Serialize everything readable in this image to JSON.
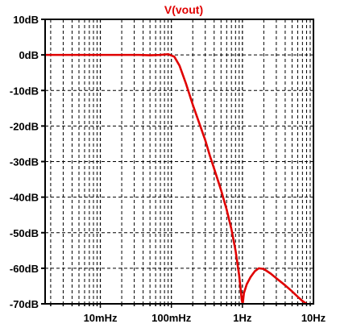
{
  "chart_data": {
    "type": "line",
    "title": "V(vout)",
    "x_scale": "log",
    "xlim": [
      0.00167,
      10
    ],
    "ylim": [
      -70,
      10
    ],
    "x_ticks": [
      {
        "value": 0.01,
        "label": "10mHz"
      },
      {
        "value": 0.1,
        "label": "100mHz"
      },
      {
        "value": 1,
        "label": "1Hz"
      },
      {
        "value": 10,
        "label": "10Hz"
      }
    ],
    "y_ticks": [
      {
        "value": 10,
        "label": "10dB"
      },
      {
        "value": 0,
        "label": "0dB"
      },
      {
        "value": -10,
        "label": "-10dB"
      },
      {
        "value": -20,
        "label": "-20dB"
      },
      {
        "value": -30,
        "label": "-30dB"
      },
      {
        "value": -40,
        "label": "-40dB"
      },
      {
        "value": -50,
        "label": "-50dB"
      },
      {
        "value": -60,
        "label": "-60dB"
      },
      {
        "value": -70,
        "label": "-70dB"
      }
    ],
    "grid": true,
    "series": [
      {
        "color": "#e00000",
        "x": [
          0.00167,
          0.005,
          0.01,
          0.02,
          0.035,
          0.05,
          0.07,
          0.09,
          0.11,
          0.13,
          0.16,
          0.2,
          0.25,
          0.3,
          0.35,
          0.4,
          0.5,
          0.6,
          0.7,
          0.8,
          0.9,
          0.98,
          1.01,
          1.05,
          1.15,
          1.3,
          1.5,
          1.7,
          2.0,
          2.5,
          3.0,
          4.0,
          5.0,
          6.0,
          7.0,
          8.0,
          8.5
        ],
        "y": [
          0,
          0,
          0,
          0,
          0,
          -0.1,
          0,
          0.2,
          -0.5,
          -3,
          -8,
          -14,
          -19.5,
          -24,
          -28.5,
          -32,
          -38,
          -43.5,
          -49,
          -55,
          -62,
          -69,
          -70,
          -67,
          -64.5,
          -62.5,
          -60.8,
          -60,
          -60.2,
          -61.5,
          -62.8,
          -64.8,
          -66.5,
          -68,
          -69.2,
          -70,
          -70.5
        ]
      }
    ]
  }
}
